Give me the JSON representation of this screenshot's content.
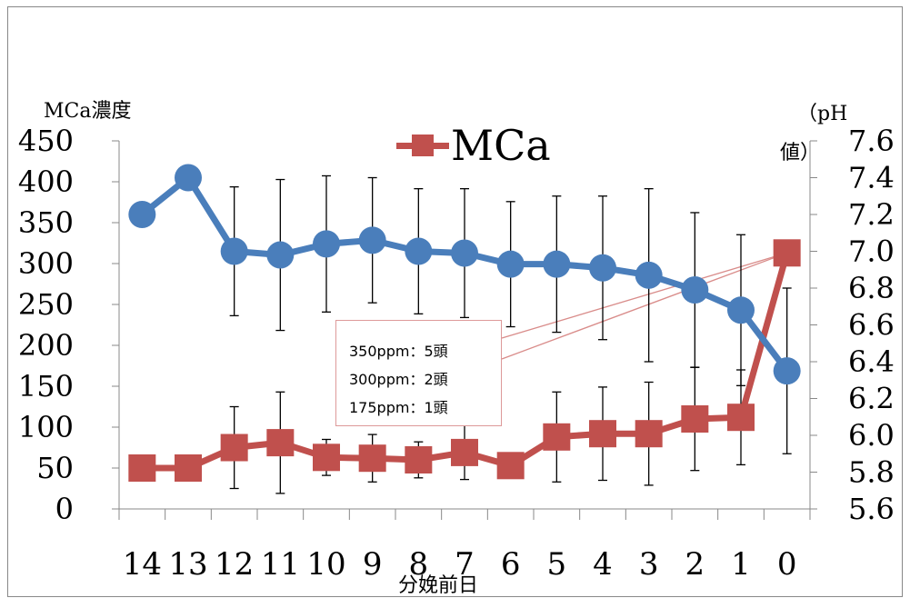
{
  "chart_data": {
    "type": "line",
    "categories": [
      "14",
      "13",
      "12",
      "11",
      "10",
      "9",
      "8",
      "7",
      "6",
      "5",
      "4",
      "3",
      "2",
      "1",
      "0"
    ],
    "xlabel": "分娩前日",
    "y_left": {
      "label": "MCa濃度",
      "ticks": [
        "0",
        "50",
        "100",
        "150",
        "200",
        "250",
        "300",
        "350",
        "400",
        "450"
      ],
      "ylim": [
        0,
        450
      ]
    },
    "y_right": {
      "label_line1": "（pH",
      "label_line2": "値）",
      "ticks": [
        "5.6",
        "5.8",
        "6.0",
        "6.2",
        "6.4",
        "6.6",
        "6.8",
        "7.0",
        "7.2",
        "7.4",
        "7.6"
      ],
      "ylim": [
        5.6,
        7.6
      ]
    },
    "grid": false,
    "legend": {
      "position": "top-center",
      "entries": [
        {
          "name": "MCa",
          "color": "#c0504d",
          "marker": "square"
        }
      ]
    },
    "series": [
      {
        "name": "MCa",
        "axis": "left",
        "color": "#c0504d",
        "marker": "square",
        "values": [
          50,
          50,
          75,
          81,
          63,
          62,
          60,
          69,
          53,
          88,
          92,
          92,
          110,
          112,
          313
        ],
        "error": [
          null,
          null,
          50,
          62,
          22,
          29,
          22,
          33,
          null,
          55,
          57,
          63,
          63,
          58,
          null
        ]
      },
      {
        "axis": "right",
        "color": "#4a7ebb",
        "marker": "circle",
        "values": [
          7.2,
          7.4,
          7.0,
          6.98,
          7.04,
          7.06,
          7.0,
          6.99,
          6.93,
          6.93,
          6.91,
          6.87,
          6.79,
          6.68,
          6.35
        ],
        "error": [
          null,
          null,
          0.35,
          0.41,
          0.37,
          0.34,
          0.34,
          0.35,
          0.34,
          0.37,
          0.39,
          0.47,
          0.42,
          0.41,
          0.45
        ]
      }
    ],
    "annotation": {
      "lines": [
        "350ppm：5頭",
        "300ppm：2頭",
        "175ppm：1頭"
      ],
      "points_to": {
        "series": "MCa",
        "category": "0"
      }
    }
  }
}
